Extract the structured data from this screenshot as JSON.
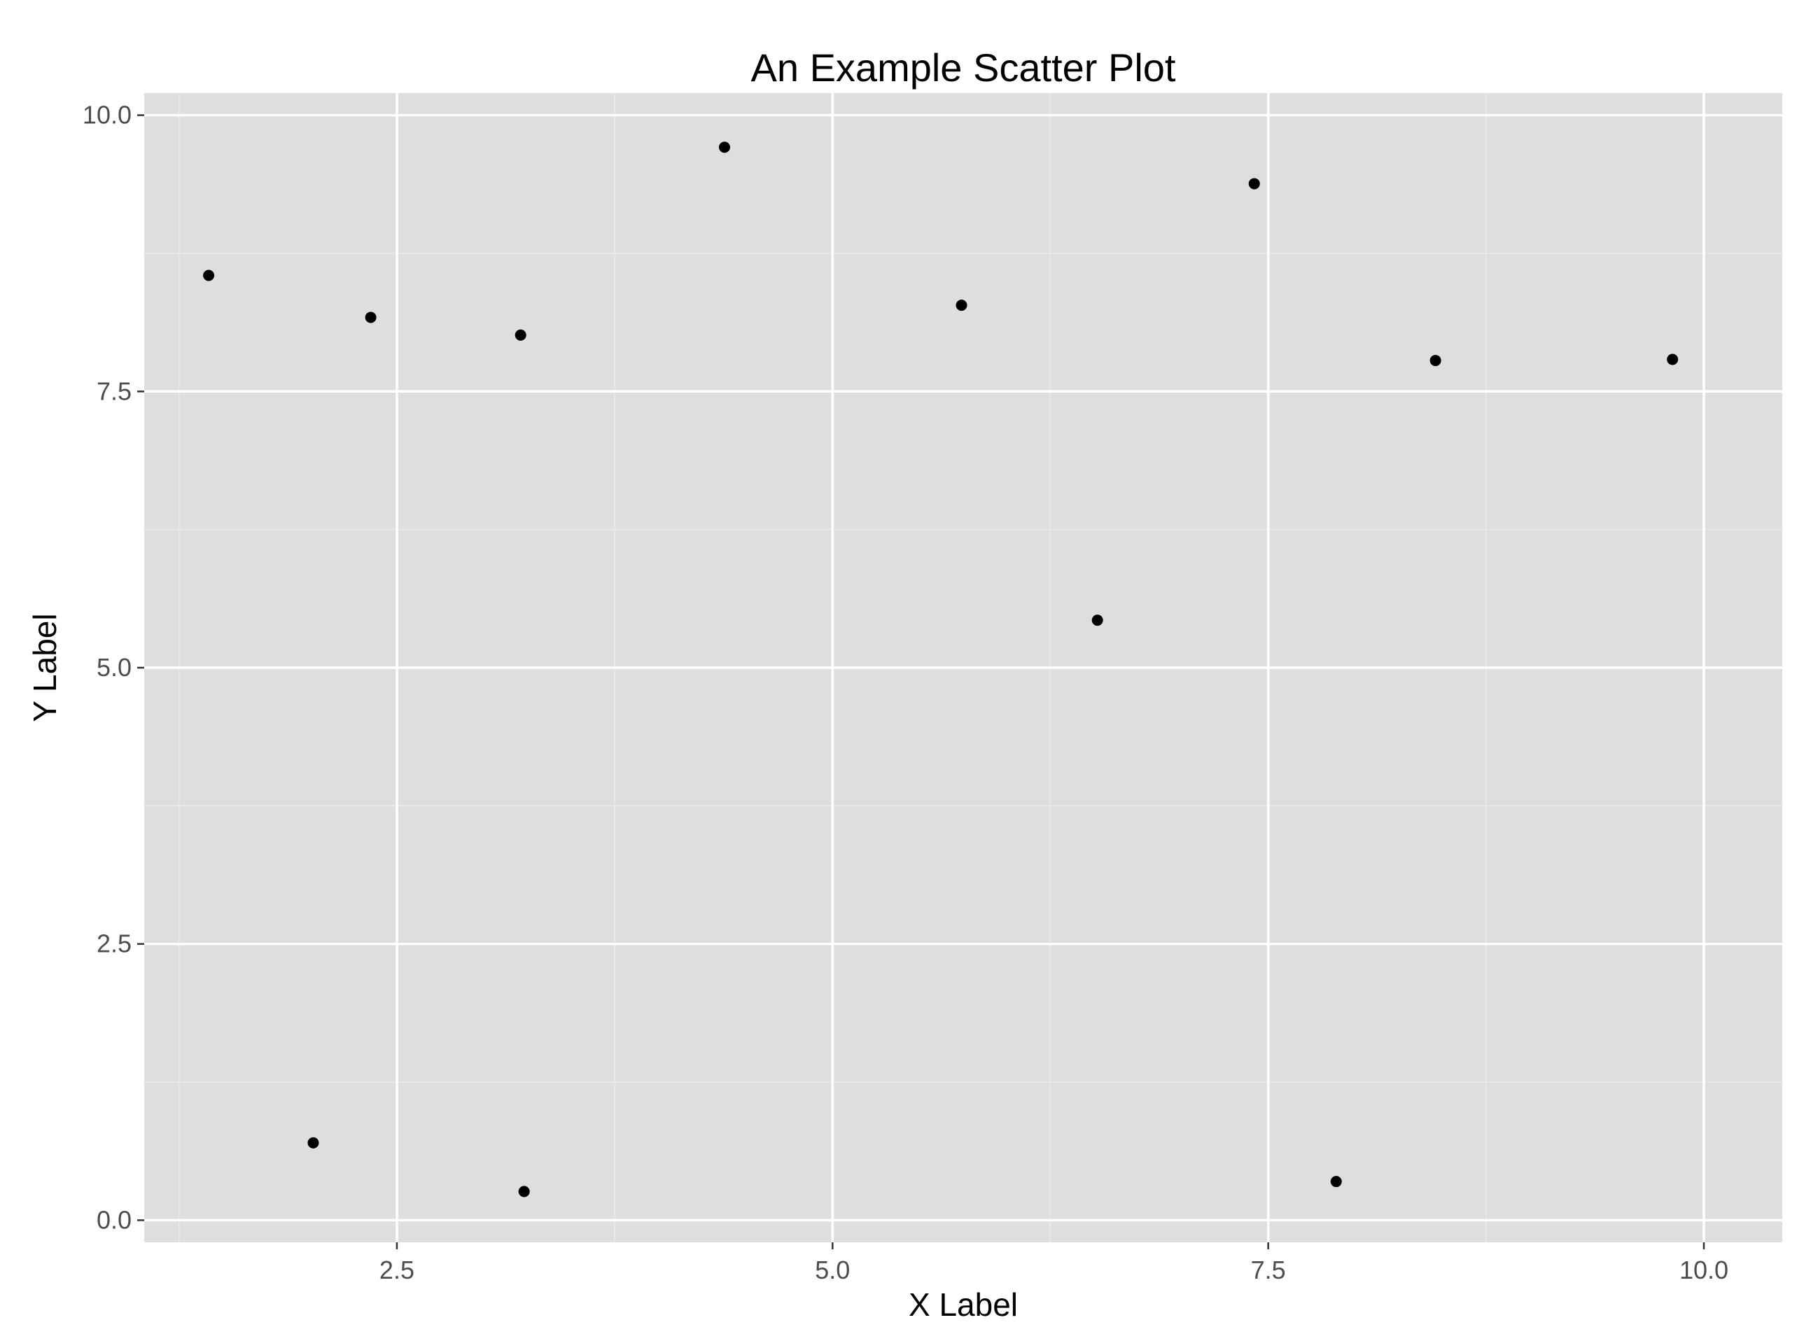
{
  "chart_data": {
    "type": "scatter",
    "title": "An Example Scatter Plot",
    "xlabel": "X Label",
    "ylabel": "Y Label",
    "xlim": [
      1.05,
      10.45
    ],
    "ylim": [
      -0.2,
      10.2
    ],
    "x_ticks": [
      2.5,
      5.0,
      7.5,
      10.0
    ],
    "x_tick_labels": [
      "2.5",
      "5.0",
      "7.5",
      "10.0"
    ],
    "y_ticks": [
      0.0,
      2.5,
      5.0,
      7.5,
      10.0
    ],
    "y_tick_labels": [
      "0.0",
      "2.5",
      "5.0",
      "7.5",
      "10.0"
    ],
    "x_minor_ticks": [
      1.25,
      3.75,
      6.25,
      8.75
    ],
    "y_minor_ticks": [
      1.25,
      3.75,
      6.25,
      8.75
    ],
    "grid": true,
    "colors": {
      "panel_background": "#dedede",
      "grid_major": "#ffffff",
      "grid_minor": "#ebebeb",
      "point": "#000000",
      "tick_label": "#4d4d4d",
      "tick_mark": "#333333"
    },
    "points": [
      {
        "x": 1.42,
        "y": 8.55
      },
      {
        "x": 2.02,
        "y": 0.7
      },
      {
        "x": 2.35,
        "y": 8.17
      },
      {
        "x": 3.21,
        "y": 8.01
      },
      {
        "x": 3.23,
        "y": 0.26
      },
      {
        "x": 4.38,
        "y": 9.71
      },
      {
        "x": 5.74,
        "y": 8.28
      },
      {
        "x": 6.52,
        "y": 5.43
      },
      {
        "x": 7.42,
        "y": 9.38
      },
      {
        "x": 7.89,
        "y": 0.35
      },
      {
        "x": 8.46,
        "y": 7.78
      },
      {
        "x": 9.82,
        "y": 7.79
      }
    ]
  }
}
